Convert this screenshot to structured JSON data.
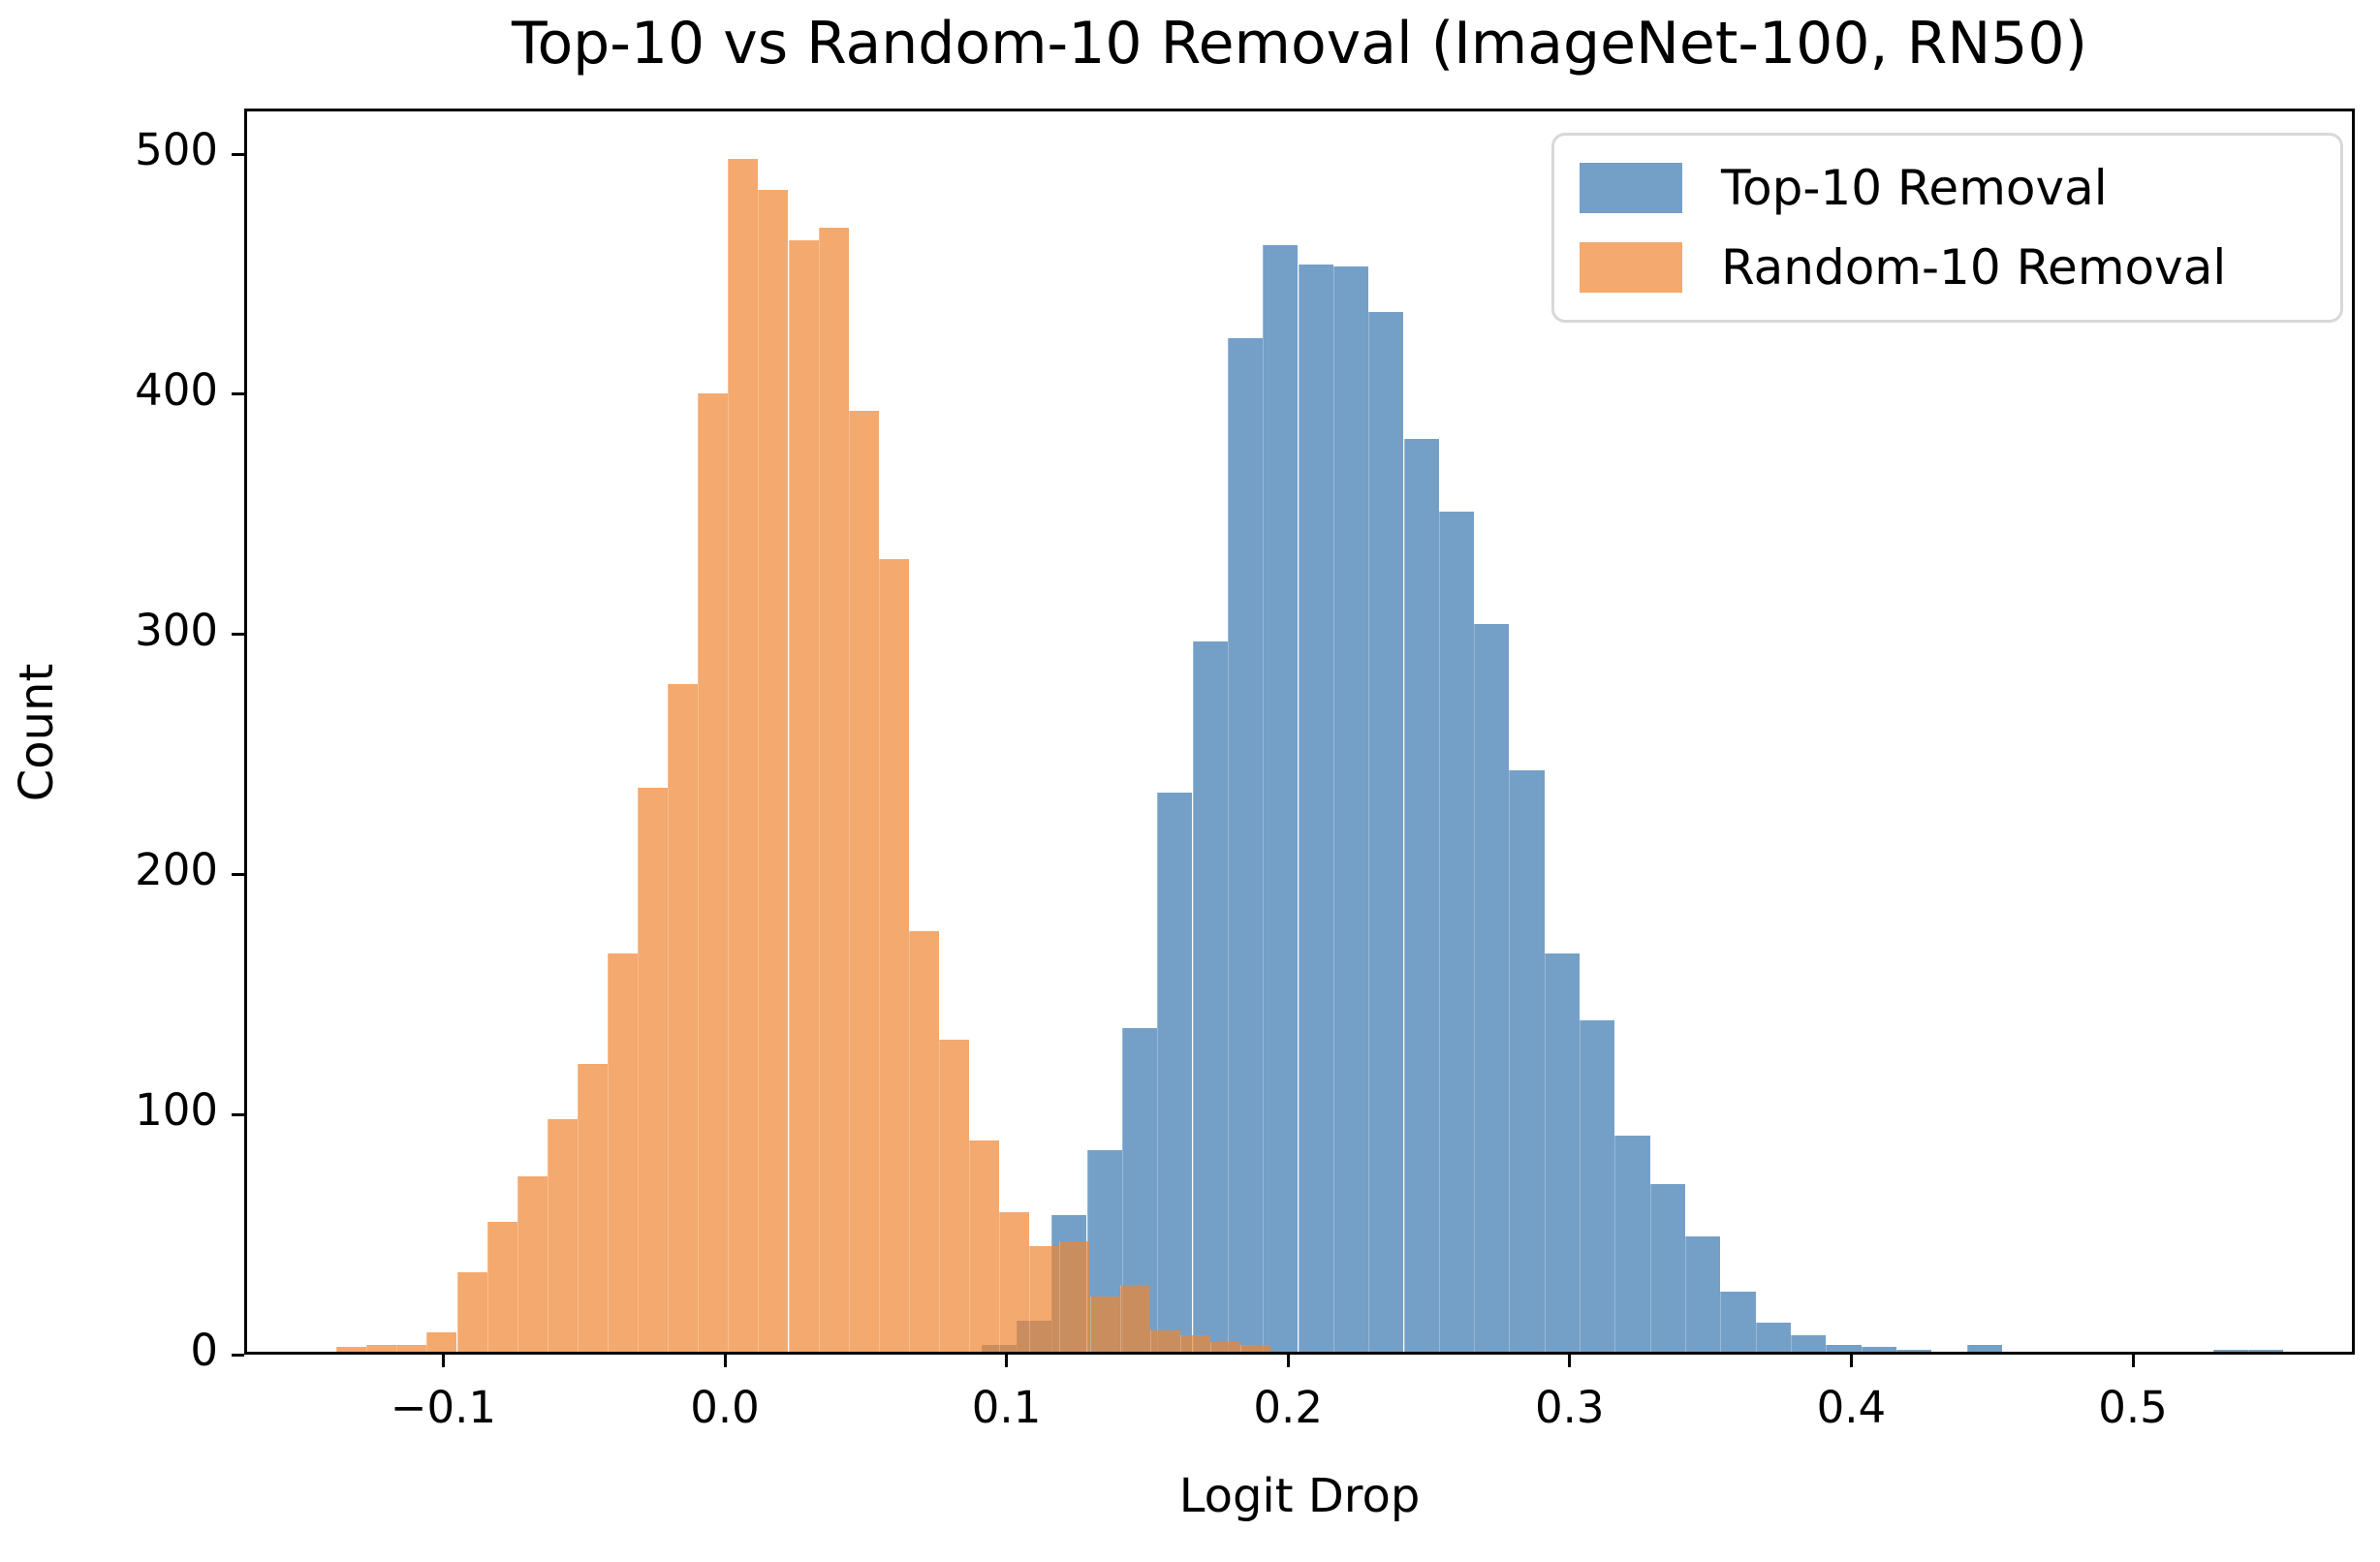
{
  "title": "Top-10 vs Random-10 Removal (ImageNet-100, RN50)",
  "xlabel": "Logit Drop",
  "ylabel": "Count",
  "legend": {
    "items": [
      {
        "label": "Top-10 Removal",
        "swatch_color": "#74a0c8"
      },
      {
        "label": "Random-10 Removal",
        "swatch_color": "#f4a96f"
      }
    ]
  },
  "axes": {
    "xlim": [
      -0.1707,
      0.5788
    ],
    "ylim": [
      0,
      519
    ],
    "x_ticks": [
      {
        "value": -0.1,
        "label": "−0.1"
      },
      {
        "value": 0.0,
        "label": "0.0"
      },
      {
        "value": 0.1,
        "label": "0.1"
      },
      {
        "value": 0.2,
        "label": "0.2"
      },
      {
        "value": 0.3,
        "label": "0.3"
      },
      {
        "value": 0.4,
        "label": "0.4"
      },
      {
        "value": 0.5,
        "label": "0.5"
      }
    ],
    "y_ticks": [
      {
        "value": 0,
        "label": "0"
      },
      {
        "value": 100,
        "label": "100"
      },
      {
        "value": 200,
        "label": "200"
      },
      {
        "value": 300,
        "label": "300"
      },
      {
        "value": 400,
        "label": "400"
      },
      {
        "value": 500,
        "label": "500"
      }
    ],
    "grid": false,
    "legend_position": "upper right"
  },
  "chart_data": {
    "type": "bar",
    "subtype": "overlaid-histograms",
    "title": "Top-10 vs Random-10 Removal (ImageNet-100, RN50)",
    "xlabel": "Logit Drop",
    "ylabel": "Count",
    "xlim": [
      -0.1707,
      0.5788
    ],
    "ylim": [
      0,
      519
    ],
    "series": [
      {
        "name": "Top-10 Removal",
        "fill": "#74a0c8",
        "alpha": 1.0,
        "bin_start": 0.09,
        "bin_width": 0.0125,
        "counts": [
          3,
          13,
          57,
          84,
          135,
          233,
          296,
          422,
          461,
          453,
          452,
          433,
          380,
          350,
          303,
          242,
          166,
          138,
          90,
          70,
          48,
          25,
          12,
          7,
          3,
          2,
          1,
          0,
          3,
          0,
          0,
          0,
          0,
          0,
          0,
          1,
          1
        ]
      },
      {
        "name": "Random-10 Removal",
        "fill": "#ef8431",
        "alpha": 0.7,
        "bin_start": -0.139,
        "bin_width": 0.0107,
        "counts": [
          2,
          3,
          3,
          8,
          33,
          54,
          73,
          97,
          120,
          166,
          235,
          278,
          399,
          497,
          484,
          463,
          468,
          392,
          330,
          175,
          130,
          88,
          58,
          44,
          46,
          23,
          28,
          9,
          7,
          4,
          3
        ]
      }
    ]
  }
}
